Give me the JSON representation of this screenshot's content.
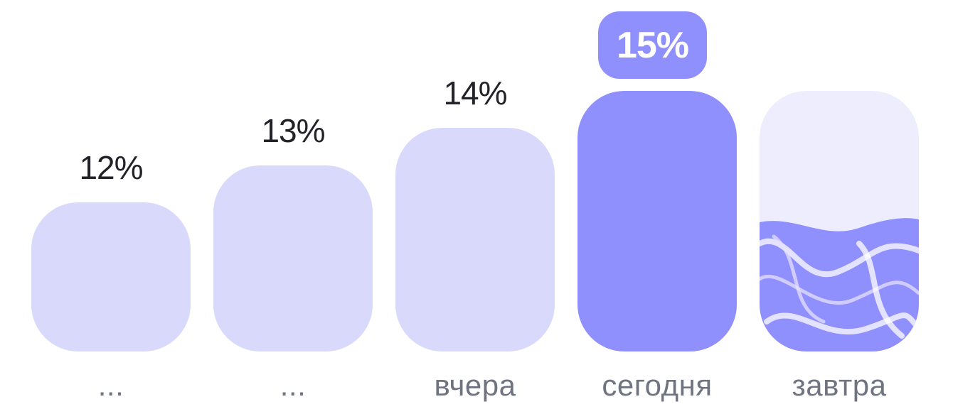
{
  "chart_data": {
    "type": "bar",
    "categories": [
      "...",
      "...",
      "вчера",
      "сегодня",
      "завтра"
    ],
    "values": [
      12,
      13,
      14,
      15,
      null
    ],
    "value_labels": [
      "12%",
      "13%",
      "14%",
      "15%",
      ""
    ],
    "highlighted_category": "сегодня",
    "highlight_label": "15%",
    "ylim": [
      8,
      15
    ],
    "grid": false,
    "legend": "none"
  },
  "colors": {
    "bar": "#d9d9fc",
    "highlight_bar": "#8f8ffd",
    "badge": "#8f8ffd",
    "forecast_bg": "#ededfd",
    "forecast_fill": "#8f8ffd",
    "value_text": "#222229",
    "category_text": "#6f7480"
  },
  "icons": {
    "forecast_fill": "marbled-liquid-pattern"
  }
}
